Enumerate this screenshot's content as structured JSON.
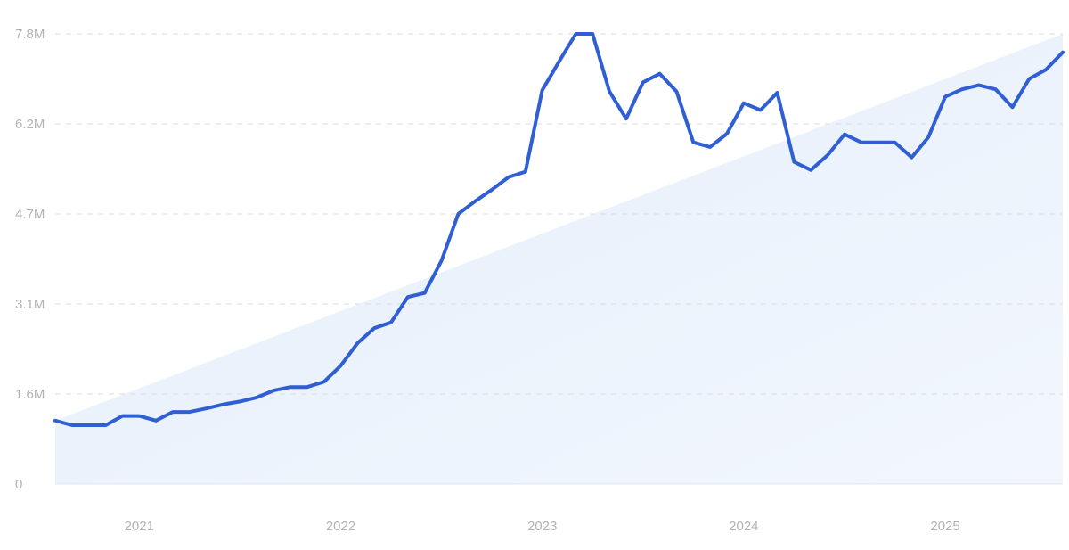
{
  "chart_data": {
    "type": "line",
    "title": "",
    "xlabel": "",
    "ylabel": "",
    "grid": true,
    "legend": "none",
    "colors": {
      "line": "#2f5fd3",
      "trend_fill": "#e3eefc",
      "grid": "#dcdcdc",
      "tick_text": "#b3b3b3"
    },
    "ylim": [
      0,
      7800000
    ],
    "y_ticks": [
      {
        "value": 0,
        "label": "0"
      },
      {
        "value": 1560000,
        "label": "1.6M"
      },
      {
        "value": 3120000,
        "label": "3.1M"
      },
      {
        "value": 4680000,
        "label": "4.7M"
      },
      {
        "value": 6240000,
        "label": "6.2M"
      },
      {
        "value": 7800000,
        "label": "7.8M"
      }
    ],
    "xlim": [
      "2020-08",
      "2025-08"
    ],
    "x_ticks": [
      {
        "value": "2021-01",
        "label": "2021"
      },
      {
        "value": "2022-01",
        "label": "2022"
      },
      {
        "value": "2023-01",
        "label": "2023"
      },
      {
        "value": "2024-01",
        "label": "2024"
      },
      {
        "value": "2025-01",
        "label": "2025"
      }
    ],
    "trend": {
      "start": {
        "x": "2020-08",
        "y": 1100000
      },
      "end": {
        "x": "2025-08",
        "y": 7800000
      }
    },
    "series": [
      {
        "x": [
          "2020-08",
          "2020-09",
          "2020-10",
          "2020-11",
          "2020-12",
          "2021-01",
          "2021-02",
          "2021-03",
          "2021-04",
          "2021-05",
          "2021-06",
          "2021-07",
          "2021-08",
          "2021-09",
          "2021-10",
          "2021-11",
          "2021-12",
          "2022-01",
          "2022-02",
          "2022-03",
          "2022-04",
          "2022-05",
          "2022-06",
          "2022-07",
          "2022-08",
          "2022-09",
          "2022-10",
          "2022-11",
          "2022-12",
          "2023-01",
          "2023-02",
          "2023-03",
          "2023-04",
          "2023-05",
          "2023-06",
          "2023-07",
          "2023-08",
          "2023-09",
          "2023-10",
          "2023-11",
          "2023-12",
          "2024-01",
          "2024-02",
          "2024-03",
          "2024-04",
          "2024-05",
          "2024-06",
          "2024-07",
          "2024-08",
          "2024-09",
          "2024-10",
          "2024-11",
          "2024-12",
          "2025-01",
          "2025-02",
          "2025-03",
          "2025-04",
          "2025-05",
          "2025-06",
          "2025-07",
          "2025-08"
        ],
        "values": [
          1100000,
          1020000,
          1020000,
          1020000,
          1180000,
          1180000,
          1100000,
          1250000,
          1250000,
          1310000,
          1380000,
          1430000,
          1500000,
          1620000,
          1680000,
          1680000,
          1770000,
          2050000,
          2440000,
          2700000,
          2800000,
          3240000,
          3310000,
          3870000,
          4680000,
          4900000,
          5100000,
          5320000,
          5410000,
          6820000,
          7320000,
          7800000,
          7800000,
          6800000,
          6330000,
          6960000,
          7110000,
          6800000,
          5920000,
          5840000,
          6070000,
          6600000,
          6480000,
          6780000,
          5580000,
          5440000,
          5700000,
          6060000,
          5920000,
          5920000,
          5920000,
          5660000,
          6010000,
          6710000,
          6840000,
          6910000,
          6840000,
          6530000,
          7020000,
          7180000,
          7480000
        ]
      }
    ]
  }
}
